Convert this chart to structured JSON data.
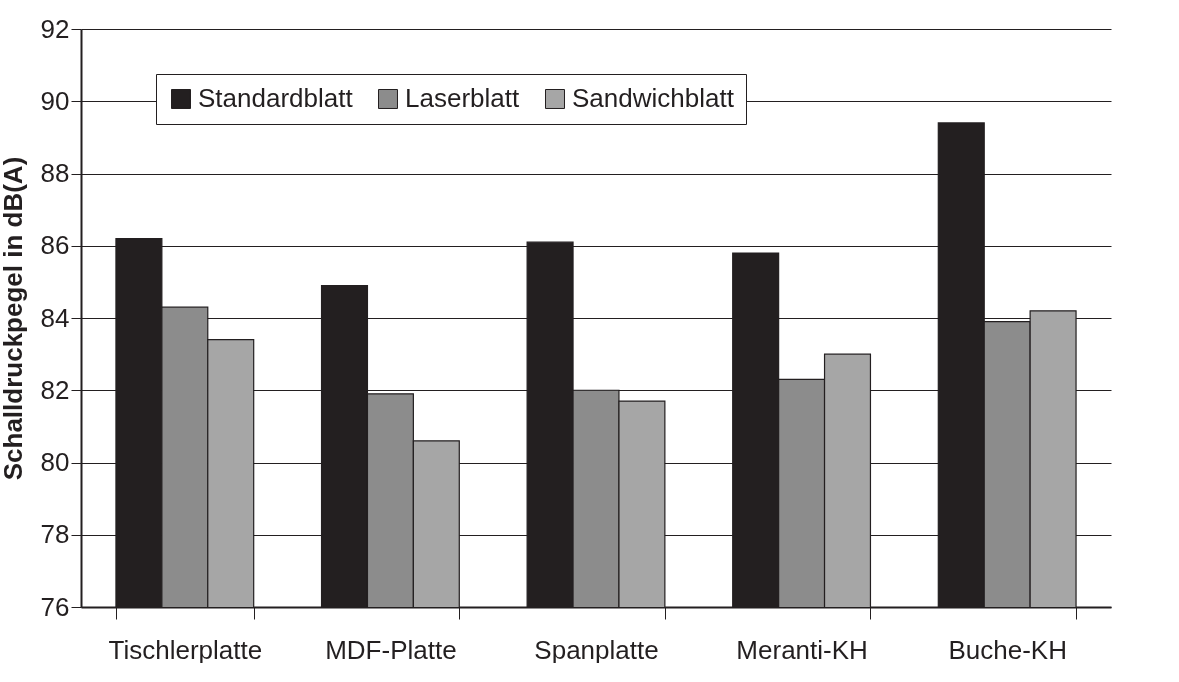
{
  "chart_data": {
    "type": "bar",
    "ylabel": "Schalldruckpegel in dB(A)",
    "categories": [
      "Tischlerplatte",
      "MDF-Platte",
      "Spanplatte",
      "Meranti-KH",
      "Buche-KH"
    ],
    "series": [
      {
        "name": "Standardblatt",
        "color": "#231f20",
        "values": [
          86.2,
          84.9,
          86.1,
          85.8,
          89.4
        ]
      },
      {
        "name": "Laserblatt",
        "color": "#8c8c8c",
        "values": [
          84.3,
          81.9,
          82.0,
          82.3,
          83.9
        ]
      },
      {
        "name": "Sandwichblatt",
        "color": "#a6a6a6",
        "values": [
          83.4,
          80.6,
          81.7,
          83.0,
          84.2
        ]
      }
    ],
    "ylim": [
      76,
      92
    ],
    "yticks": [
      76,
      78,
      80,
      82,
      84,
      86,
      88,
      90,
      92
    ],
    "grid": "y",
    "legend": "top left"
  }
}
